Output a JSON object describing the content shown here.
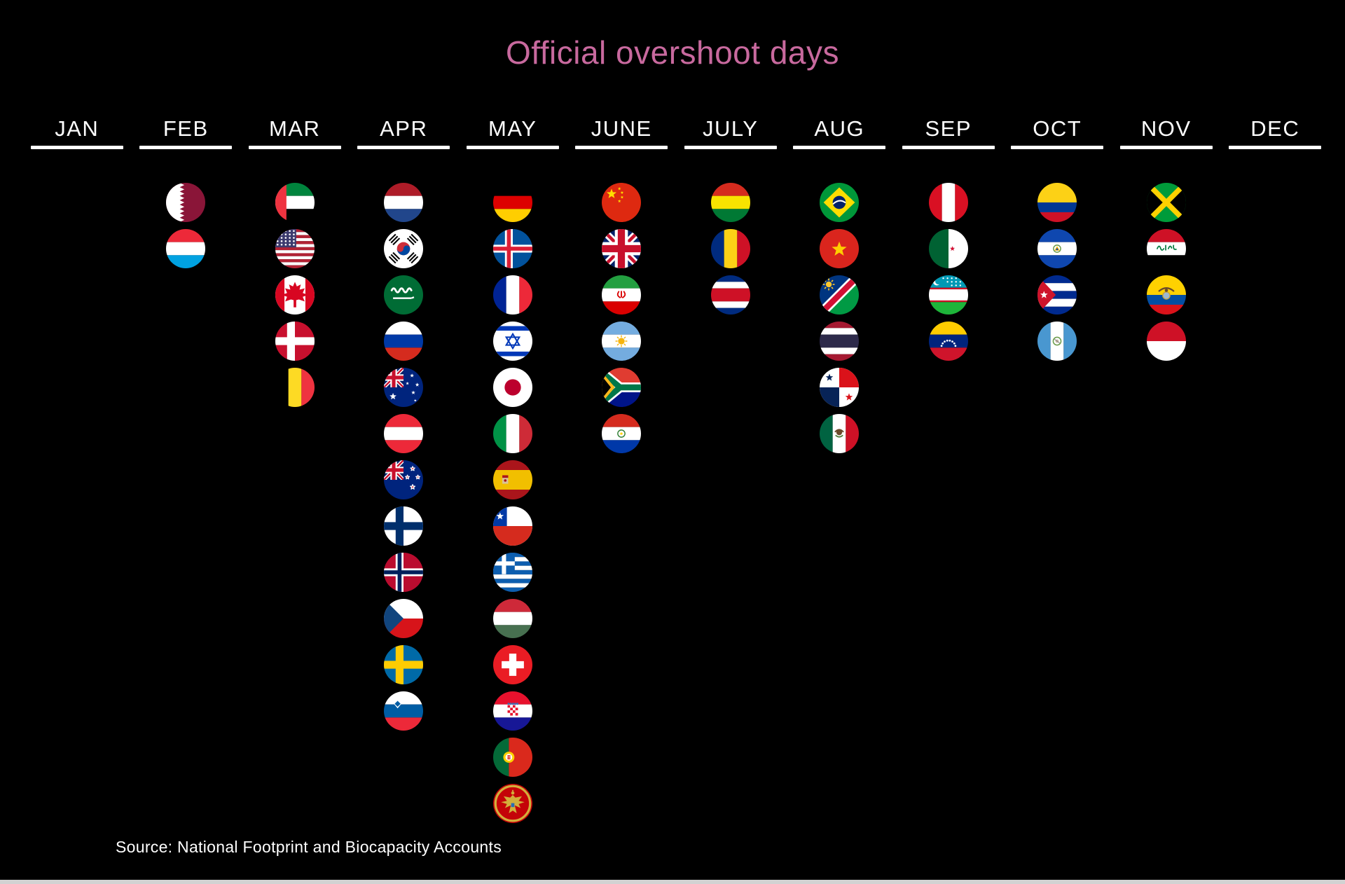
{
  "title": "Official overshoot days",
  "source": "Source: National Footprint and Biocapacity Accounts",
  "colors": {
    "background": "#000000",
    "title": "#c8699e",
    "month_text": "#ffffff",
    "underline": "#ffffff",
    "source_text": "#ffffff",
    "bottom_bar": "#d2d2d2"
  },
  "months": [
    {
      "label": "JAN",
      "countries": []
    },
    {
      "label": "FEB",
      "countries": [
        "Qatar",
        "Luxembourg"
      ]
    },
    {
      "label": "MAR",
      "countries": [
        "United Arab Emirates",
        "United States",
        "Canada",
        "Denmark",
        "Belgium"
      ]
    },
    {
      "label": "APR",
      "countries": [
        "Netherlands",
        "South Korea",
        "Saudi Arabia",
        "Russia",
        "Australia",
        "Austria",
        "New Zealand",
        "Finland",
        "Norway",
        "Czech Republic",
        "Sweden",
        "Slovenia"
      ]
    },
    {
      "label": "MAY",
      "countries": [
        "Germany",
        "Iceland",
        "France",
        "Israel",
        "Japan",
        "Italy",
        "Spain",
        "Chile",
        "Greece",
        "Hungary",
        "Switzerland",
        "Croatia",
        "Portugal",
        "Montenegro"
      ]
    },
    {
      "label": "JUNE",
      "countries": [
        "China",
        "United Kingdom",
        "Iran",
        "Argentina",
        "South Africa",
        "Paraguay"
      ]
    },
    {
      "label": "JULY",
      "countries": [
        "Bolivia",
        "Romania",
        "Costa Rica"
      ]
    },
    {
      "label": "AUG",
      "countries": [
        "Brazil",
        "Vietnam",
        "Namibia",
        "Thailand",
        "Panama",
        "Mexico"
      ]
    },
    {
      "label": "SEP",
      "countries": [
        "Peru",
        "Algeria",
        "Uzbekistan",
        "Venezuela"
      ]
    },
    {
      "label": "OCT",
      "countries": [
        "Colombia",
        "El Salvador",
        "Cuba",
        "Guatemala"
      ]
    },
    {
      "label": "NOV",
      "countries": [
        "Jamaica",
        "Iraq",
        "Ecuador",
        "Indonesia"
      ]
    },
    {
      "label": "DEC",
      "countries": []
    }
  ],
  "chart_data": {
    "type": "table",
    "title": "Official overshoot days",
    "categories": [
      "JAN",
      "FEB",
      "MAR",
      "APR",
      "MAY",
      "JUNE",
      "JULY",
      "AUG",
      "SEP",
      "OCT",
      "NOV",
      "DEC"
    ],
    "counts": [
      0,
      2,
      5,
      12,
      14,
      6,
      3,
      6,
      4,
      4,
      4,
      0
    ],
    "series": [
      {
        "name": "countries-by-month",
        "values": [
          [],
          [
            "Qatar",
            "Luxembourg"
          ],
          [
            "United Arab Emirates",
            "United States",
            "Canada",
            "Denmark",
            "Belgium"
          ],
          [
            "Netherlands",
            "South Korea",
            "Saudi Arabia",
            "Russia",
            "Australia",
            "Austria",
            "New Zealand",
            "Finland",
            "Norway",
            "Czech Republic",
            "Sweden",
            "Slovenia"
          ],
          [
            "Germany",
            "Iceland",
            "France",
            "Israel",
            "Japan",
            "Italy",
            "Spain",
            "Chile",
            "Greece",
            "Hungary",
            "Switzerland",
            "Croatia",
            "Portugal",
            "Montenegro"
          ],
          [
            "China",
            "United Kingdom",
            "Iran",
            "Argentina",
            "South Africa",
            "Paraguay"
          ],
          [
            "Bolivia",
            "Romania",
            "Costa Rica"
          ],
          [
            "Brazil",
            "Vietnam",
            "Namibia",
            "Thailand",
            "Panama",
            "Mexico"
          ],
          [
            "Peru",
            "Algeria",
            "Uzbekistan",
            "Venezuela"
          ],
          [
            "Colombia",
            "El Salvador",
            "Cuba",
            "Guatemala"
          ],
          [
            "Jamaica",
            "Iraq",
            "Ecuador",
            "Indonesia"
          ],
          []
        ]
      }
    ],
    "legend": "none",
    "source": "National Footprint and Biocapacity Accounts"
  }
}
